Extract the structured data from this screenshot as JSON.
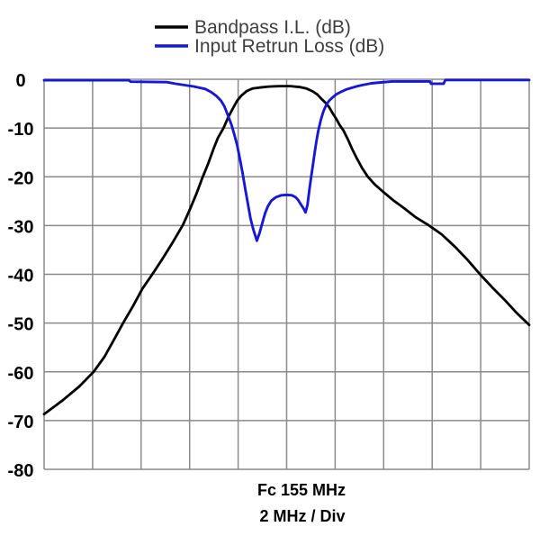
{
  "chart_data": {
    "type": "line",
    "title": "",
    "x_axis": {
      "center_label": "Fc 155 MHz",
      "div_label": "2 MHz / Div",
      "min": 145,
      "max": 165,
      "divisions": 10,
      "grid": true
    },
    "y_axis": {
      "ticks": [
        "0",
        "-10",
        "-20",
        "-30",
        "-40",
        "-50",
        "-60",
        "-70",
        "-80"
      ],
      "max": 0,
      "min": -80,
      "grid": true
    },
    "legend_position": "top",
    "series": [
      {
        "name": "Bandpass I.L. (dB)",
        "color": "#000000",
        "points": [
          [
            145.0,
            -68.7
          ],
          [
            145.78,
            -65.8
          ],
          [
            146.45,
            -63.0
          ],
          [
            147.04,
            -60.0
          ],
          [
            147.49,
            -56.9
          ],
          [
            147.86,
            -53.6
          ],
          [
            148.27,
            -49.9
          ],
          [
            148.68,
            -46.4
          ],
          [
            149.05,
            -43.0
          ],
          [
            149.5,
            -39.7
          ],
          [
            149.91,
            -36.6
          ],
          [
            150.32,
            -33.3
          ],
          [
            150.72,
            -29.9
          ],
          [
            151.02,
            -26.6
          ],
          [
            151.28,
            -23.5
          ],
          [
            151.54,
            -20.0
          ],
          [
            151.77,
            -17.2
          ],
          [
            151.99,
            -14.2
          ],
          [
            152.17,
            -12.0
          ],
          [
            152.4,
            -10.0
          ],
          [
            152.58,
            -7.9
          ],
          [
            152.77,
            -6.1
          ],
          [
            152.96,
            -4.4
          ],
          [
            153.14,
            -3.3
          ],
          [
            153.36,
            -2.4
          ],
          [
            153.59,
            -1.9
          ],
          [
            153.88,
            -1.7
          ],
          [
            154.26,
            -1.5
          ],
          [
            154.7,
            -1.4
          ],
          [
            155.15,
            -1.4
          ],
          [
            155.56,
            -1.6
          ],
          [
            155.82,
            -1.9
          ],
          [
            156.08,
            -2.5
          ],
          [
            156.26,
            -3.1
          ],
          [
            156.45,
            -4.1
          ],
          [
            156.6,
            -4.8
          ],
          [
            156.75,
            -5.7
          ],
          [
            156.9,
            -7.0
          ],
          [
            157.04,
            -8.1
          ],
          [
            157.19,
            -9.4
          ],
          [
            157.34,
            -10.5
          ],
          [
            157.53,
            -12.4
          ],
          [
            157.71,
            -14.4
          ],
          [
            157.9,
            -16.3
          ],
          [
            158.12,
            -18.3
          ],
          [
            158.35,
            -20.0
          ],
          [
            158.64,
            -21.6
          ],
          [
            158.98,
            -23.1
          ],
          [
            159.39,
            -24.8
          ],
          [
            159.83,
            -26.4
          ],
          [
            160.32,
            -28.3
          ],
          [
            160.84,
            -29.9
          ],
          [
            161.39,
            -31.8
          ],
          [
            161.95,
            -34.4
          ],
          [
            162.47,
            -37.1
          ],
          [
            162.99,
            -40.1
          ],
          [
            163.48,
            -42.7
          ],
          [
            164.0,
            -45.3
          ],
          [
            164.48,
            -47.9
          ],
          [
            165.0,
            -50.4
          ]
        ]
      },
      {
        "name": "Input Retrun Loss (dB)",
        "color": "#1717d8",
        "points": [
          [
            145.0,
            -0.2
          ],
          [
            148.49,
            -0.2
          ],
          [
            148.57,
            -0.5
          ],
          [
            150.06,
            -0.6
          ],
          [
            150.43,
            -0.92
          ],
          [
            150.8,
            -1.2
          ],
          [
            151.17,
            -1.48
          ],
          [
            151.43,
            -1.76
          ],
          [
            151.65,
            -2.0
          ],
          [
            151.88,
            -2.6
          ],
          [
            152.1,
            -3.4
          ],
          [
            152.29,
            -4.4
          ],
          [
            152.43,
            -5.5
          ],
          [
            152.58,
            -7.4
          ],
          [
            152.73,
            -9.4
          ],
          [
            152.84,
            -11.3
          ],
          [
            152.96,
            -13.5
          ],
          [
            153.07,
            -16.3
          ],
          [
            153.18,
            -19.2
          ],
          [
            153.29,
            -22.4
          ],
          [
            153.4,
            -25.5
          ],
          [
            153.51,
            -28.5
          ],
          [
            153.62,
            -30.7
          ],
          [
            153.7,
            -32.0
          ],
          [
            153.77,
            -33.1
          ],
          [
            153.88,
            -31.6
          ],
          [
            154.0,
            -29.4
          ],
          [
            154.11,
            -27.5
          ],
          [
            154.22,
            -26.1
          ],
          [
            154.37,
            -24.9
          ],
          [
            154.55,
            -24.2
          ],
          [
            154.78,
            -23.8
          ],
          [
            155.0,
            -23.7
          ],
          [
            155.22,
            -23.8
          ],
          [
            155.37,
            -24.2
          ],
          [
            155.48,
            -24.8
          ],
          [
            155.59,
            -25.7
          ],
          [
            155.71,
            -26.6
          ],
          [
            155.78,
            -27.3
          ],
          [
            155.86,
            -25.7
          ],
          [
            155.93,
            -22.9
          ],
          [
            156.0,
            -20.3
          ],
          [
            156.08,
            -17.7
          ],
          [
            156.15,
            -15.2
          ],
          [
            156.23,
            -12.7
          ],
          [
            156.3,
            -10.7
          ],
          [
            156.41,
            -8.3
          ],
          [
            156.52,
            -6.5
          ],
          [
            156.64,
            -5.2
          ],
          [
            156.75,
            -4.4
          ],
          [
            156.9,
            -3.7
          ],
          [
            157.04,
            -3.1
          ],
          [
            157.23,
            -2.6
          ],
          [
            157.45,
            -2.1
          ],
          [
            157.68,
            -1.76
          ],
          [
            157.94,
            -1.39
          ],
          [
            158.2,
            -1.11
          ],
          [
            158.49,
            -0.83
          ],
          [
            158.87,
            -0.65
          ],
          [
            159.35,
            -0.45
          ],
          [
            160.91,
            -0.45
          ],
          [
            160.95,
            -0.9
          ],
          [
            161.47,
            -0.9
          ],
          [
            161.54,
            -0.15
          ],
          [
            165.0,
            -0.15
          ]
        ]
      }
    ]
  },
  "colors": {
    "background": "#ffffff",
    "grid": "#8a8a8a",
    "axis_text": "#000000",
    "legend_text": "#3f3f3f"
  }
}
